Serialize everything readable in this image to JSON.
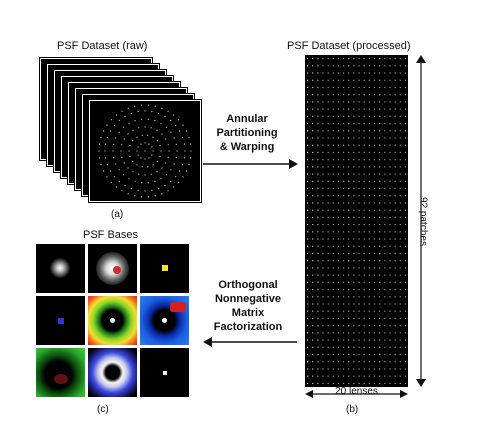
{
  "raw": {
    "title": "PSF Dataset (raw)",
    "caption": "(a)"
  },
  "step1": {
    "line1": "Annular",
    "line2": "Partitioning",
    "line3": "& Warping"
  },
  "processed": {
    "title": "PSF Dataset (processed)",
    "height_label": "92 patches",
    "width_label": "20 lenses",
    "caption": "(b)"
  },
  "bases": {
    "title": "PSF Bases",
    "caption": "(c)"
  },
  "step2": {
    "line1": "Orthogonal",
    "line2": "Nonnegative",
    "line3": "Matrix",
    "line4": "Factorization"
  }
}
